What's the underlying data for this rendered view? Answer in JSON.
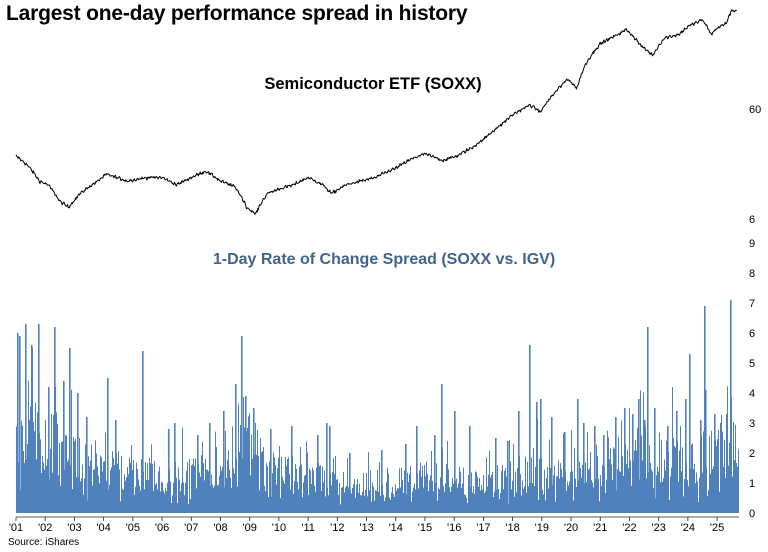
{
  "title": "Largest one-day performance spread in history",
  "source": "Source: iShares",
  "chart_data": [
    {
      "type": "line",
      "title": "Semiconductor ETF (SOXX)",
      "yscale": "log",
      "ylim": [
        6,
        600
      ],
      "yticks": [
        6,
        60
      ],
      "ytick_labels": [
        "6",
        "60"
      ],
      "grid": false,
      "color": "#000000",
      "series": [
        {
          "name": "SOXX",
          "x": [
            2001.0,
            2001.4,
            2001.8,
            2002.1,
            2002.5,
            2002.8,
            2003.2,
            2003.8,
            2004.1,
            2004.8,
            2005.5,
            2006.0,
            2006.5,
            2007.0,
            2007.5,
            2008.0,
            2008.5,
            2008.9,
            2009.2,
            2009.6,
            2010.0,
            2010.5,
            2011.0,
            2011.5,
            2011.8,
            2012.3,
            2012.8,
            2013.3,
            2014.0,
            2014.6,
            2015.0,
            2015.6,
            2016.1,
            2016.6,
            2017.0,
            2017.6,
            2018.0,
            2018.6,
            2018.95,
            2019.4,
            2019.9,
            2020.2,
            2020.5,
            2021.0,
            2021.5,
            2021.9,
            2022.4,
            2022.8,
            2023.2,
            2023.7,
            2024.0,
            2024.5,
            2024.8,
            2025.0,
            2025.3,
            2025.5
          ],
          "values": [
            22,
            18,
            13,
            12,
            8.5,
            7.5,
            10,
            13,
            15,
            13,
            14,
            14,
            12,
            14,
            16,
            13,
            11.5,
            7.5,
            6.5,
            10,
            11,
            12,
            14,
            12,
            10,
            12,
            13,
            14,
            17,
            21,
            23,
            20,
            22,
            26,
            31,
            42,
            52,
            64,
            55,
            80,
            110,
            90,
            150,
            230,
            270,
            310,
            220,
            180,
            260,
            280,
            330,
            380,
            280,
            320,
            350,
            460
          ]
        }
      ]
    },
    {
      "type": "bar",
      "title": "1-Day Rate of Change Spread (SOXX vs. IGV)",
      "ylim": [
        0,
        9
      ],
      "yticks": [
        0,
        1,
        2,
        3,
        4,
        5,
        6,
        7,
        8,
        9
      ],
      "grid": false,
      "color": "#4f81bd",
      "xlim": [
        2001.0,
        2025.75
      ],
      "xtick_labels": [
        "'01",
        "'02",
        "'03",
        "'04",
        "'05",
        "'06",
        "'07",
        "'08",
        "'09",
        "'10",
        "'11",
        "'12",
        "'13",
        "'14",
        "'15",
        "'16",
        "'17",
        "'18",
        "'19",
        "'20",
        "'21",
        "'22",
        "'23",
        "'24",
        "'25"
      ],
      "xtick_positions": [
        2001,
        2002,
        2003,
        2004,
        2005,
        2006,
        2007,
        2008,
        2009,
        2010,
        2011,
        2012,
        2013,
        2014,
        2015,
        2016,
        2017,
        2018,
        2019,
        2020,
        2021,
        2022,
        2023,
        2024,
        2025
      ],
      "regime": {
        "x": [
          2001.0,
          2002.0,
          2003.0,
          2004.0,
          2005.0,
          2006.0,
          2007.0,
          2008.0,
          2008.5,
          2009.0,
          2010.0,
          2011.0,
          2012.0,
          2013.0,
          2014.0,
          2015.0,
          2016.0,
          2017.0,
          2018.0,
          2019.0,
          2020.0,
          2020.5,
          2021.0,
          2022.0,
          2023.0,
          2024.0,
          2025.0,
          2025.75
        ],
        "typical": [
          2.6,
          2.4,
          2.1,
          1.6,
          1.3,
          1.25,
          1.3,
          1.6,
          2.3,
          1.9,
          1.35,
          1.3,
          1.05,
          1.0,
          1.05,
          1.25,
          1.1,
          0.95,
          1.3,
          1.4,
          1.2,
          1.7,
          1.45,
          1.9,
          1.8,
          1.7,
          2.1,
          2.2
        ]
      },
      "spikes": [
        {
          "x": 2001.05,
          "value": 6.0
        },
        {
          "x": 2001.1,
          "value": 5.9
        },
        {
          "x": 2001.3,
          "value": 6.3
        },
        {
          "x": 2001.5,
          "value": 5.6
        },
        {
          "x": 2001.75,
          "value": 6.3
        },
        {
          "x": 2002.1,
          "value": 4.2
        },
        {
          "x": 2002.3,
          "value": 6.2
        },
        {
          "x": 2002.6,
          "value": 4.4
        },
        {
          "x": 2002.8,
          "value": 5.5
        },
        {
          "x": 2003.1,
          "value": 4.0
        },
        {
          "x": 2003.4,
          "value": 3.2
        },
        {
          "x": 2004.1,
          "value": 4.5
        },
        {
          "x": 2004.4,
          "value": 3.1
        },
        {
          "x": 2005.3,
          "value": 5.4
        },
        {
          "x": 2006.2,
          "value": 2.8
        },
        {
          "x": 2006.4,
          "value": 3.0
        },
        {
          "x": 2007.2,
          "value": 2.6
        },
        {
          "x": 2007.6,
          "value": 3.0
        },
        {
          "x": 2008.1,
          "value": 3.4
        },
        {
          "x": 2008.5,
          "value": 4.3
        },
        {
          "x": 2008.7,
          "value": 5.9
        },
        {
          "x": 2008.85,
          "value": 3.9
        },
        {
          "x": 2009.1,
          "value": 3.5
        },
        {
          "x": 2009.7,
          "value": 2.8
        },
        {
          "x": 2010.4,
          "value": 2.9
        },
        {
          "x": 2011.3,
          "value": 2.6
        },
        {
          "x": 2011.6,
          "value": 3.0
        },
        {
          "x": 2011.7,
          "value": 2.9
        },
        {
          "x": 2012.4,
          "value": 2.0
        },
        {
          "x": 2013.5,
          "value": 2.1
        },
        {
          "x": 2014.3,
          "value": 2.3
        },
        {
          "x": 2014.7,
          "value": 2.9
        },
        {
          "x": 2015.3,
          "value": 2.6
        },
        {
          "x": 2015.55,
          "value": 4.3
        },
        {
          "x": 2016.0,
          "value": 3.4
        },
        {
          "x": 2016.5,
          "value": 2.9
        },
        {
          "x": 2017.4,
          "value": 2.5
        },
        {
          "x": 2017.8,
          "value": 2.4
        },
        {
          "x": 2018.2,
          "value": 3.4
        },
        {
          "x": 2018.55,
          "value": 5.6
        },
        {
          "x": 2018.8,
          "value": 3.7
        },
        {
          "x": 2018.95,
          "value": 3.8
        },
        {
          "x": 2019.3,
          "value": 3.2
        },
        {
          "x": 2019.75,
          "value": 2.7
        },
        {
          "x": 2020.2,
          "value": 3.8
        },
        {
          "x": 2020.4,
          "value": 3.0
        },
        {
          "x": 2020.8,
          "value": 2.9
        },
        {
          "x": 2021.1,
          "value": 2.6
        },
        {
          "x": 2021.5,
          "value": 3.2
        },
        {
          "x": 2021.8,
          "value": 3.5
        },
        {
          "x": 2022.1,
          "value": 3.3
        },
        {
          "x": 2022.3,
          "value": 3.8
        },
        {
          "x": 2022.5,
          "value": 3.1
        },
        {
          "x": 2022.6,
          "value": 6.2
        },
        {
          "x": 2022.85,
          "value": 3.5
        },
        {
          "x": 2023.3,
          "value": 2.9
        },
        {
          "x": 2023.6,
          "value": 3.4
        },
        {
          "x": 2023.9,
          "value": 3.8
        },
        {
          "x": 2024.05,
          "value": 5.3
        },
        {
          "x": 2024.4,
          "value": 3.1
        },
        {
          "x": 2024.55,
          "value": 6.9
        },
        {
          "x": 2024.6,
          "value": 4.1
        },
        {
          "x": 2024.9,
          "value": 3.3
        },
        {
          "x": 2025.1,
          "value": 3.0
        },
        {
          "x": 2025.3,
          "value": 3.3
        },
        {
          "x": 2025.45,
          "value": 7.1
        }
      ]
    }
  ]
}
